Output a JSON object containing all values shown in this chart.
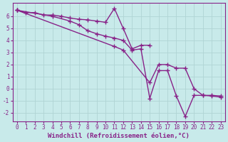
{
  "background_color": "#c8eaea",
  "grid_color": "#b0d4d4",
  "line_color": "#882288",
  "marker": "+",
  "markersize": 4,
  "linewidth": 1.0,
  "xlabel": "Windchill (Refroidissement éolien,°C)",
  "xlabel_fontsize": 6.5,
  "tick_fontsize": 5.5,
  "xlim": [
    -0.5,
    23.5
  ],
  "ylim": [
    -2.7,
    7.1
  ],
  "yticks": [
    -2,
    -1,
    0,
    1,
    2,
    3,
    4,
    5,
    6
  ],
  "xticks": [
    0,
    1,
    2,
    3,
    4,
    5,
    6,
    7,
    8,
    9,
    10,
    11,
    12,
    13,
    14,
    15,
    16,
    17,
    18,
    19,
    20,
    21,
    22,
    23
  ],
  "line1_x": [
    0,
    1,
    2,
    3,
    4,
    5,
    6,
    7,
    8,
    9,
    10,
    11,
    12,
    13,
    14,
    15
  ],
  "line1_y": [
    6.5,
    6.3,
    6.3,
    6.1,
    6.1,
    6.0,
    5.85,
    5.75,
    5.7,
    5.6,
    5.5,
    6.65,
    5.0,
    3.3,
    3.6,
    3.6
  ],
  "line2_x": [
    0,
    4,
    6,
    7,
    8,
    9,
    10,
    11,
    12,
    13,
    14,
    15,
    16,
    17,
    18,
    19,
    20,
    21,
    22,
    23
  ],
  "line2_y": [
    6.5,
    6.0,
    5.6,
    5.3,
    4.8,
    4.55,
    4.35,
    4.2,
    4.0,
    3.2,
    3.3,
    -0.8,
    1.5,
    1.5,
    -0.6,
    -2.3,
    -0.55,
    -0.55,
    -0.6,
    -0.7
  ],
  "line3_x": [
    0,
    11,
    12,
    15,
    16,
    17,
    18,
    19,
    20,
    21,
    22,
    23
  ],
  "line3_y": [
    6.5,
    3.5,
    3.2,
    0.5,
    2.0,
    2.0,
    1.7,
    1.7,
    0.0,
    -0.55,
    -0.55,
    -0.6
  ]
}
